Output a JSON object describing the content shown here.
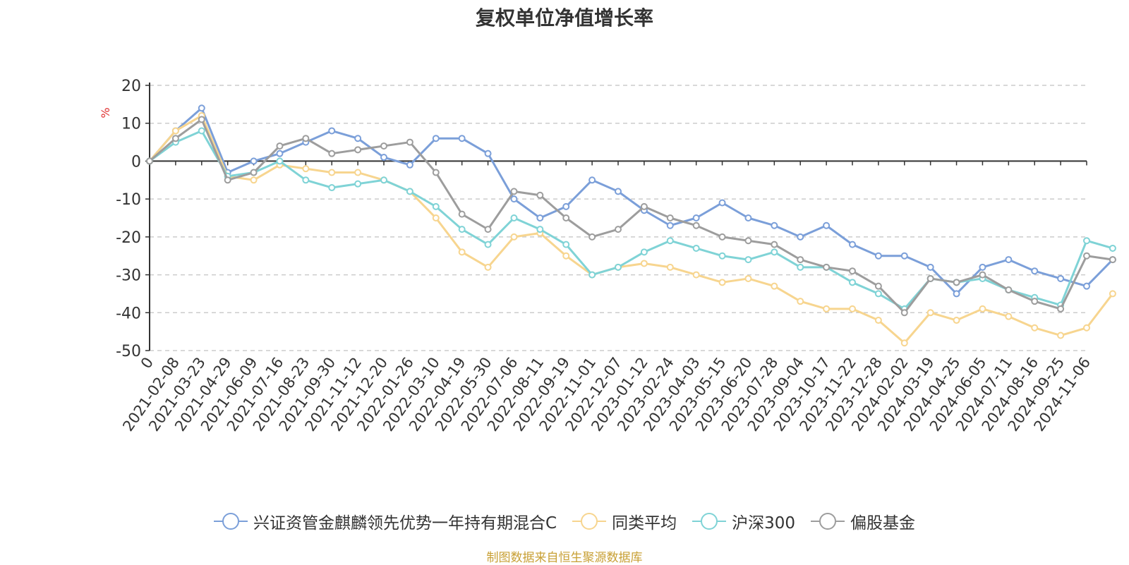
{
  "chart_data": {
    "type": "line",
    "title": "复权单位净值增长率",
    "ylabel": "%",
    "ylim": [
      -50,
      20
    ],
    "yticks": [
      20,
      10,
      0,
      -10,
      -20,
      -30,
      -40,
      -50
    ],
    "xtick_labels": [
      "0",
      "2021-02-08",
      "2021-03-23",
      "2021-04-29",
      "2021-06-09",
      "2021-07-16",
      "2021-08-23",
      "2021-09-30",
      "2021-11-12",
      "2021-12-20",
      "2022-01-26",
      "2022-03-10",
      "2022-04-19",
      "2022-05-30",
      "2022-07-06",
      "2022-08-11",
      "2022-09-19",
      "2022-11-01",
      "2022-12-07",
      "2023-01-12",
      "2023-02-24",
      "2023-04-03",
      "2023-05-15",
      "2023-06-20",
      "2023-07-28",
      "2023-09-04",
      "2023-10-17",
      "2023-11-22",
      "2023-12-28",
      "2024-02-02",
      "2024-03-19",
      "2024-04-25",
      "2024-06-05",
      "2024-07-11",
      "2024-08-16",
      "2024-09-25",
      "2024-11-06"
    ],
    "grid": true,
    "legend_position": "bottom",
    "series": [
      {
        "name": "兴证资管金麒麟领先优势一年持有期混合C",
        "color": "#7b9fd9",
        "values": [
          0,
          8,
          14,
          -3,
          0,
          2,
          5,
          8,
          6,
          1,
          -1,
          6,
          6,
          2,
          -10,
          -15,
          -12,
          -5,
          -8,
          -13,
          -17,
          -15,
          -11,
          -15,
          -17,
          -20,
          -17,
          -22,
          -25,
          -25,
          -28,
          -35,
          -28,
          -26,
          -29,
          -31,
          -33,
          -26
        ]
      },
      {
        "name": "同类平均",
        "color": "#f7d58f",
        "values": [
          0,
          8,
          12,
          -4,
          -5,
          -1,
          -2,
          -3,
          -3,
          -5,
          -8,
          -15,
          -24,
          -28,
          -20,
          -19,
          -25,
          -30,
          -28,
          -27,
          -28,
          -30,
          -32,
          -31,
          -33,
          -37,
          -39,
          -39,
          -42,
          -48,
          -40,
          -42,
          -39,
          -41,
          -44,
          -46,
          -44,
          -35
        ]
      },
      {
        "name": "沪深300",
        "color": "#7fd3d6",
        "values": [
          0,
          5,
          8,
          -4,
          -3,
          0,
          -5,
          -7,
          -6,
          -5,
          -8,
          -12,
          -18,
          -22,
          -15,
          -18,
          -22,
          -30,
          -28,
          -24,
          -21,
          -23,
          -25,
          -26,
          -24,
          -28,
          -28,
          -32,
          -35,
          -39,
          -31,
          -32,
          -31,
          -34,
          -36,
          -38,
          -21,
          -23
        ]
      },
      {
        "name": "偏股基金",
        "color": "#9d9d9d",
        "values": [
          0,
          6,
          11,
          -5,
          -3,
          4,
          6,
          2,
          3,
          4,
          5,
          -3,
          -14,
          -18,
          -8,
          -9,
          -15,
          -20,
          -18,
          -12,
          -15,
          -17,
          -20,
          -21,
          -22,
          -26,
          -28,
          -29,
          -33,
          -40,
          -31,
          -32,
          -30,
          -34,
          -37,
          -39,
          -25,
          -26
        ]
      }
    ]
  },
  "source_note": "制图数据来自恒生聚源数据库"
}
